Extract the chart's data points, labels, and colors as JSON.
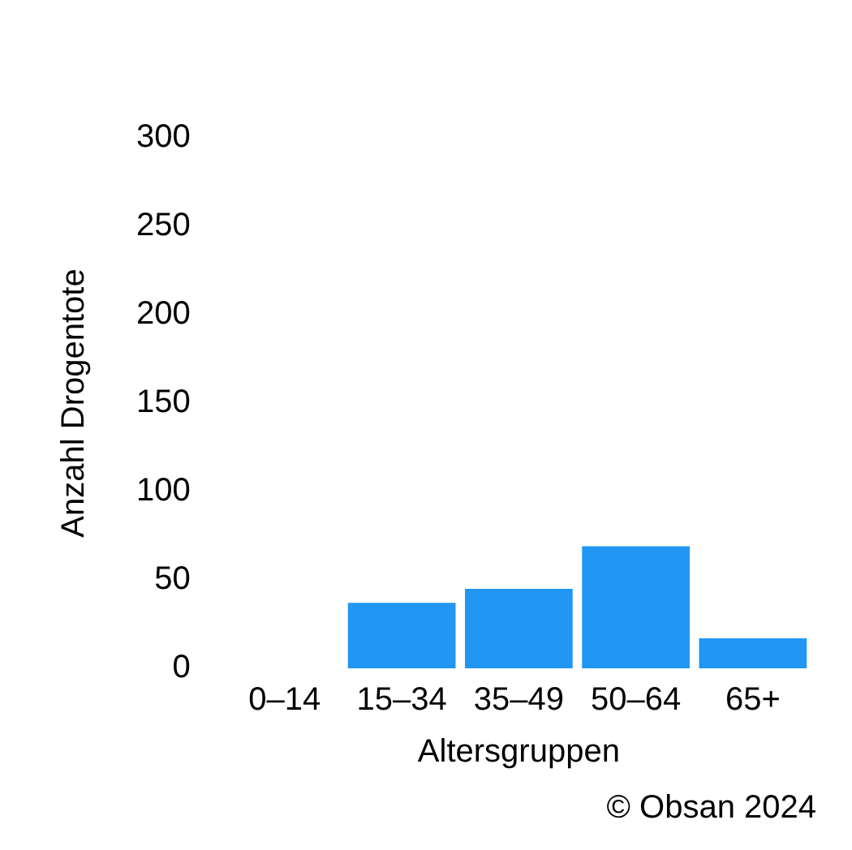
{
  "chart_data": {
    "type": "bar",
    "xlabel": "Altersgruppen",
    "ylabel": "Anzahl Drogentote",
    "categories": [
      "0–14",
      "15–34",
      "35–49",
      "50–64",
      "65+"
    ],
    "values": [
      0,
      37,
      45,
      69,
      17
    ],
    "color": "#2196f3",
    "ylim": [
      0,
      300
    ],
    "yticks": [
      0,
      50,
      100,
      150,
      200,
      250,
      300
    ],
    "grid": false,
    "legend": false,
    "annotations": [
      "© Obsan 2024"
    ]
  }
}
